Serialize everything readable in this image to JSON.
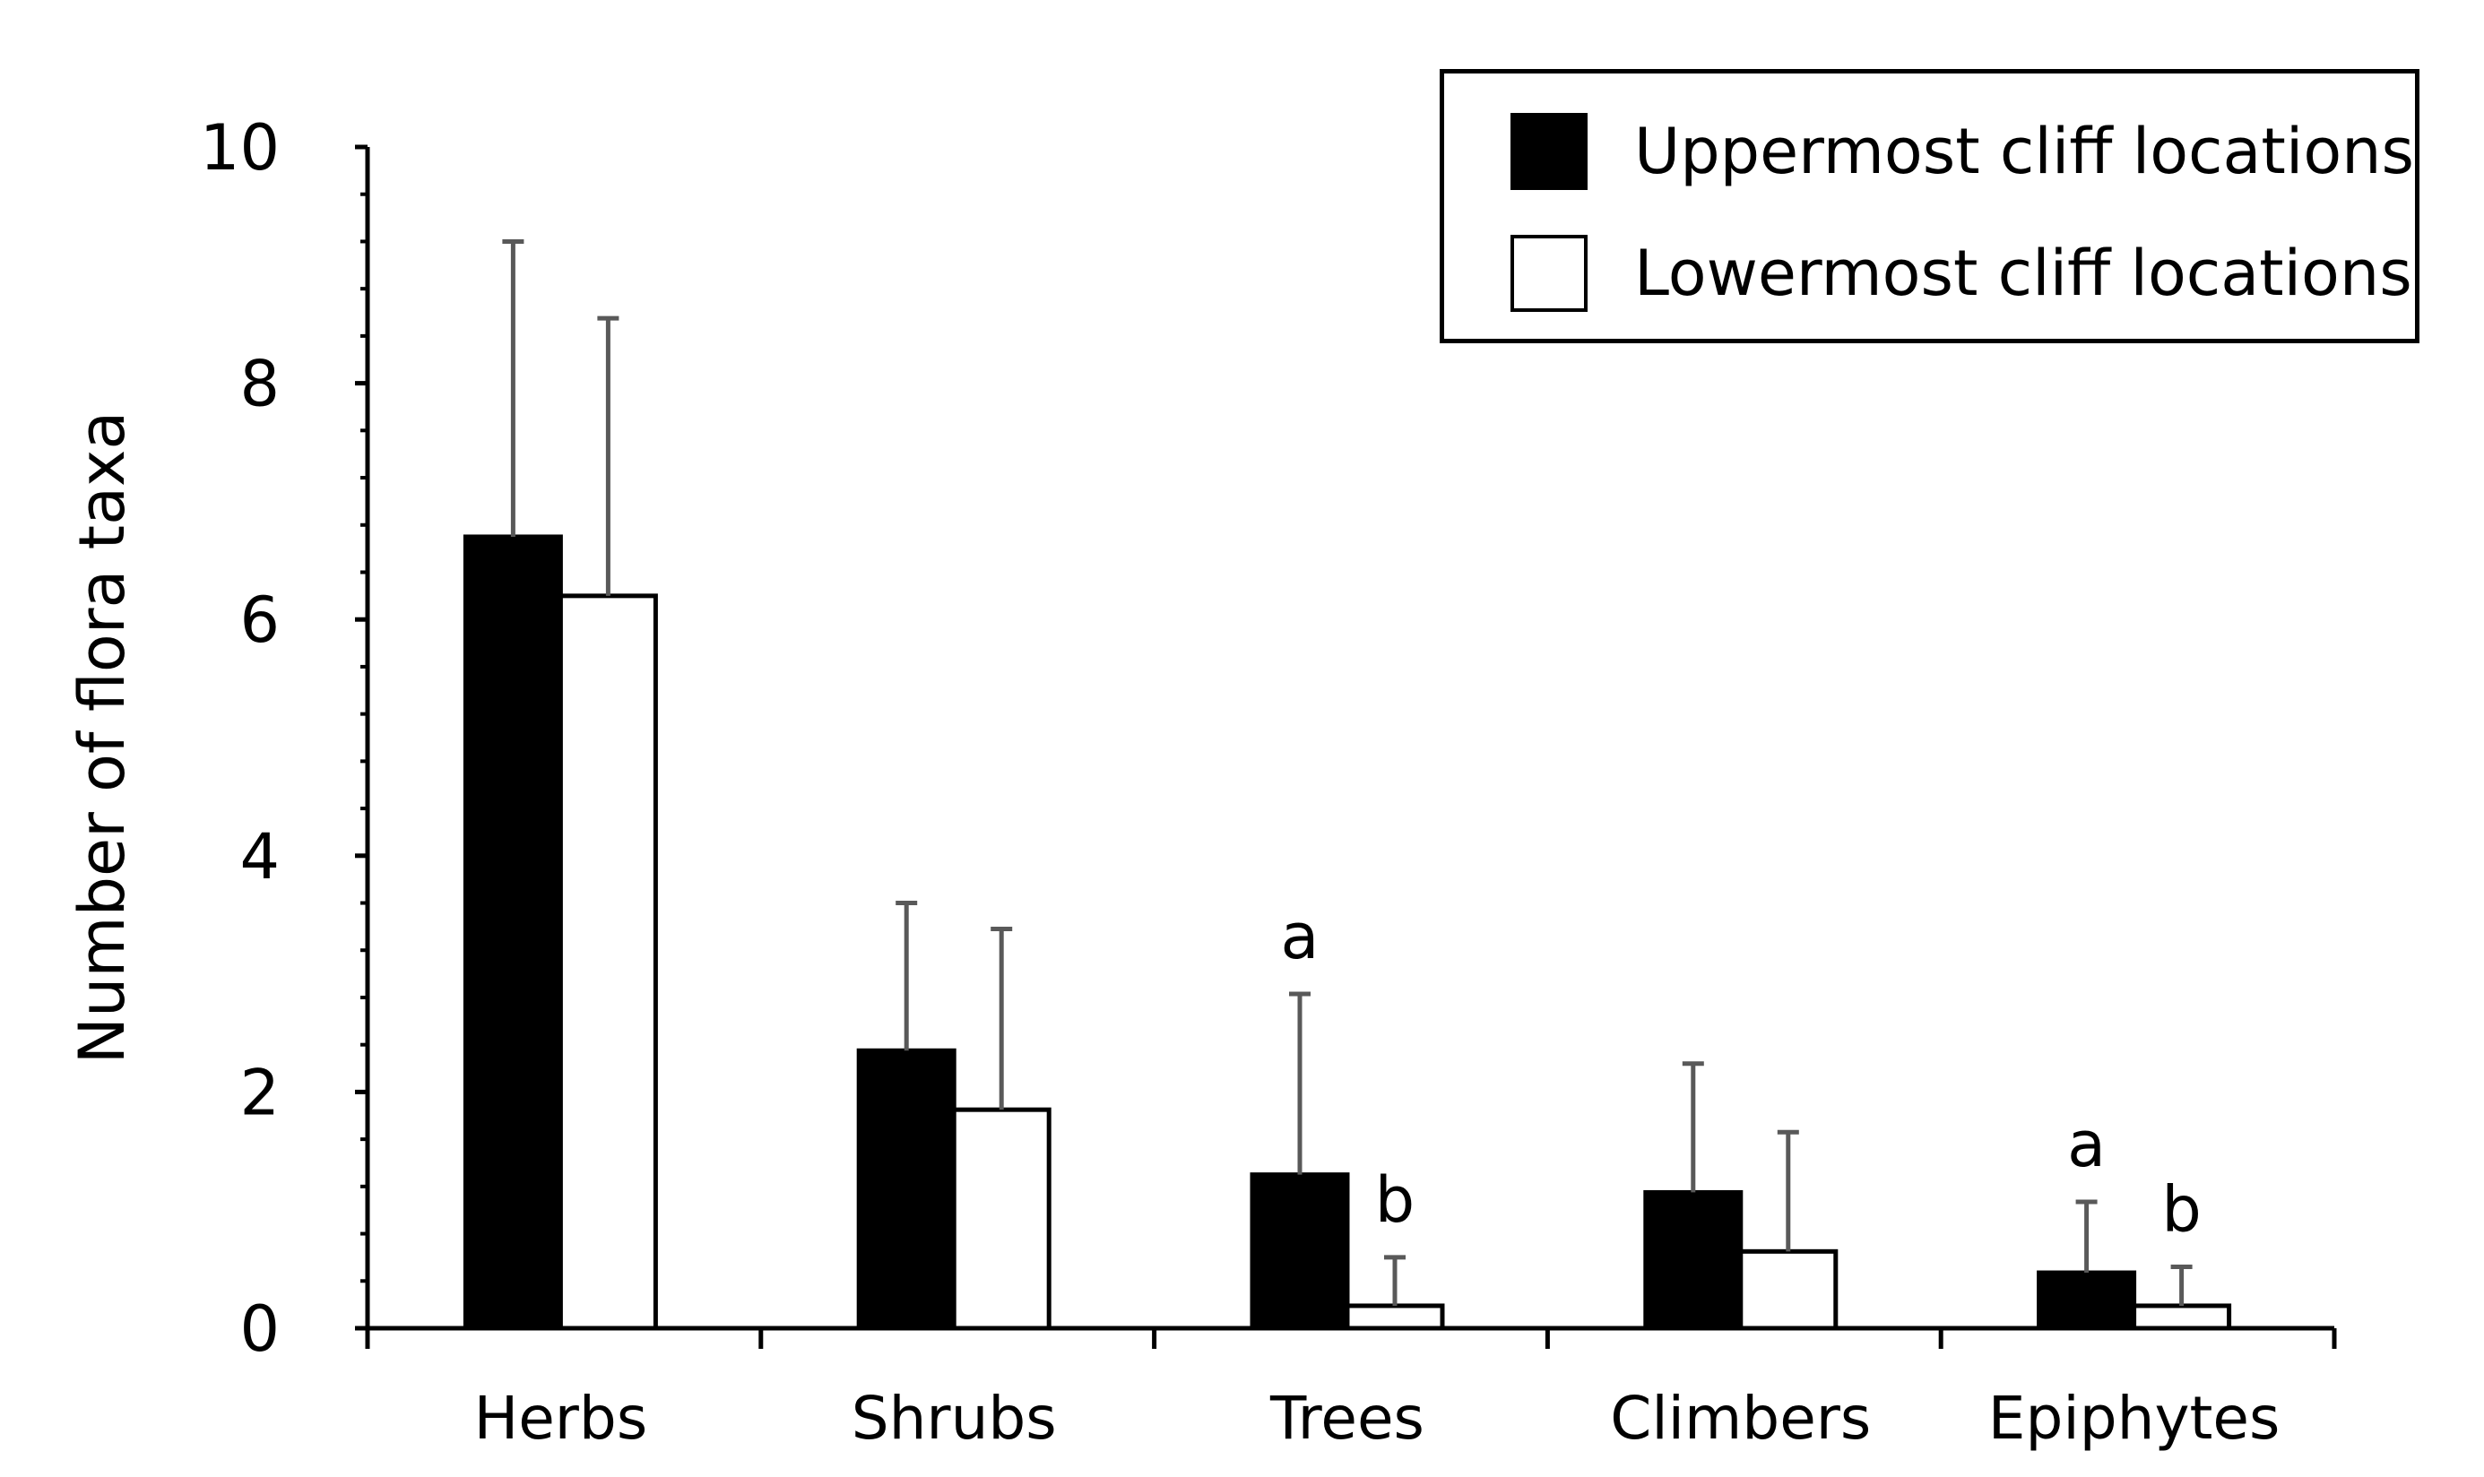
{
  "chart_data": {
    "type": "bar",
    "title": "",
    "xlabel": "",
    "ylabel": "Number of flora taxa",
    "ylim": [
      0,
      10
    ],
    "yticks": [
      "0",
      "2",
      "4",
      "6",
      "8",
      "10"
    ],
    "categories": [
      "Herbs",
      "Shrubs",
      "Trees",
      "Climbers",
      "Epiphytes"
    ],
    "series": [
      {
        "name": "Uppermost cliff locations",
        "color": "#000000",
        "values": [
          6.7,
          2.35,
          1.3,
          1.15,
          0.47
        ],
        "error": [
          2.5,
          1.25,
          1.53,
          1.09,
          0.6
        ],
        "letters": [
          "",
          "",
          "a",
          "",
          "a"
        ]
      },
      {
        "name": "Lowermost cliff locations",
        "color": "#ffffff",
        "values": [
          6.2,
          1.85,
          0.19,
          0.65,
          0.19
        ],
        "error": [
          2.35,
          1.53,
          0.41,
          1.01,
          0.33
        ],
        "letters": [
          "",
          "",
          "b",
          "",
          "b"
        ]
      }
    ],
    "legend_position": "top-right",
    "grid": false
  }
}
